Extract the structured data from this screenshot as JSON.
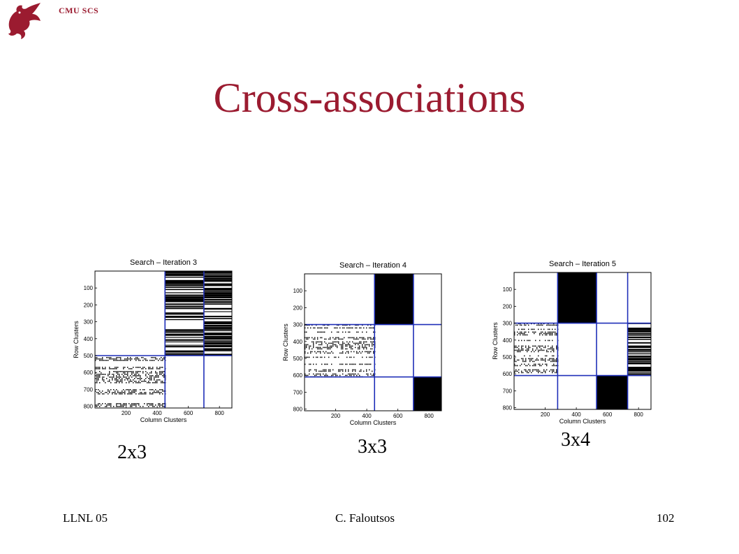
{
  "header": {
    "org": "CMU SCS",
    "logo_icon": "dragon-logo-icon",
    "accent_color": "#9b1b30"
  },
  "slide": {
    "title": "Cross-associations"
  },
  "chart_data": [
    {
      "type": "heatmap",
      "title": "Search – Iteration 3",
      "xlabel": "Column Clusters",
      "ylabel": "Row Clusters",
      "xlim": [
        0,
        880
      ],
      "ylim": [
        0,
        810
      ],
      "xticks": [
        200,
        400,
        600,
        800
      ],
      "yticks": [
        100,
        200,
        300,
        400,
        500,
        600,
        700,
        800
      ],
      "col_boundaries": [
        450,
        700
      ],
      "row_boundaries": [
        500
      ],
      "blocks": [
        {
          "rows": [
            0,
            500
          ],
          "cols": [
            0,
            450
          ],
          "fill": "empty"
        },
        {
          "rows": [
            0,
            500
          ],
          "cols": [
            450,
            700
          ],
          "fill": "horizontal-stripes"
        },
        {
          "rows": [
            0,
            500
          ],
          "cols": [
            700,
            880
          ],
          "fill": "horizontal-stripes"
        },
        {
          "rows": [
            500,
            810
          ],
          "cols": [
            0,
            450
          ],
          "fill": "dense-pattern"
        },
        {
          "rows": [
            500,
            810
          ],
          "cols": [
            450,
            700
          ],
          "fill": "empty"
        },
        {
          "rows": [
            500,
            810
          ],
          "cols": [
            700,
            880
          ],
          "fill": "empty"
        }
      ],
      "caption": "2x3"
    },
    {
      "type": "heatmap",
      "title": "Search – Iteration 4",
      "xlabel": "Column Clusters",
      "ylabel": "Row Clusters",
      "xlim": [
        0,
        880
      ],
      "ylim": [
        0,
        810
      ],
      "xticks": [
        200,
        400,
        600,
        800
      ],
      "yticks": [
        100,
        200,
        300,
        400,
        500,
        600,
        700,
        800
      ],
      "col_boundaries": [
        450,
        700
      ],
      "row_boundaries": [
        300,
        610
      ],
      "blocks": [
        {
          "rows": [
            0,
            300
          ],
          "cols": [
            450,
            700
          ],
          "fill": "solid"
        },
        {
          "rows": [
            300,
            610
          ],
          "cols": [
            0,
            450
          ],
          "fill": "dense-pattern"
        },
        {
          "rows": [
            610,
            810
          ],
          "cols": [
            700,
            880
          ],
          "fill": "solid"
        }
      ],
      "caption": "3x3"
    },
    {
      "type": "heatmap",
      "title": "Search – Iteration 5",
      "xlabel": "Column Clusters",
      "ylabel": "Row Clusters",
      "xlim": [
        0,
        880
      ],
      "ylim": [
        0,
        810
      ],
      "xticks": [
        200,
        400,
        600,
        800
      ],
      "yticks": [
        100,
        200,
        300,
        400,
        500,
        600,
        700,
        800
      ],
      "col_boundaries": [
        280,
        530,
        730
      ],
      "row_boundaries": [
        300,
        610
      ],
      "blocks": [
        {
          "rows": [
            0,
            300
          ],
          "cols": [
            280,
            530
          ],
          "fill": "solid"
        },
        {
          "rows": [
            300,
            610
          ],
          "cols": [
            0,
            280
          ],
          "fill": "dense-pattern"
        },
        {
          "rows": [
            300,
            610
          ],
          "cols": [
            730,
            880
          ],
          "fill": "horizontal-stripes"
        },
        {
          "rows": [
            610,
            810
          ],
          "cols": [
            530,
            730
          ],
          "fill": "solid"
        }
      ],
      "caption": "3x4"
    }
  ],
  "footer": {
    "left": "LLNL 05",
    "center": "C. Faloutsos",
    "right": "102"
  }
}
